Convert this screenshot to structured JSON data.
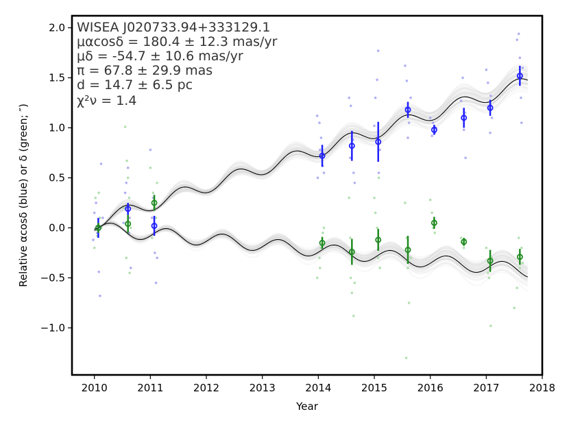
{
  "chart_data": {
    "type": "scatter",
    "xlabel": "Year",
    "ylabel": "Relative αcosδ (blue) or δ (green; ″)",
    "xlim": [
      2009.6,
      2018.0
    ],
    "ylim": [
      -1.47,
      2.12
    ],
    "xticks": [
      {
        "value": 2010,
        "label": "2010"
      },
      {
        "value": 2011,
        "label": "2011"
      },
      {
        "value": 2012,
        "label": "2012"
      },
      {
        "value": 2013,
        "label": "2013"
      },
      {
        "value": 2014,
        "label": "2014"
      },
      {
        "value": 2015,
        "label": "2015"
      },
      {
        "value": 2016,
        "label": "2016"
      },
      {
        "value": 2017,
        "label": "2017"
      },
      {
        "value": 2018,
        "label": "2018"
      }
    ],
    "yticks": [
      {
        "value": 2.0,
        "label": "2.0"
      },
      {
        "value": 1.5,
        "label": "1.5"
      },
      {
        "value": 1.0,
        "label": "1.0"
      },
      {
        "value": 0.5,
        "label": "0.5"
      },
      {
        "value": 0.0,
        "label": "0.0"
      },
      {
        "value": -0.5,
        "label": "−0.5"
      },
      {
        "value": -1.0,
        "label": "−1.0"
      }
    ],
    "annotation": {
      "object": "WISEA J020733.94+333129.1",
      "mu_ra": "μαcosδ = 180.4 ± 12.3 mas/yr",
      "mu_dec": "μδ = -54.7 ± 10.6 mas/yr",
      "parallax": "π = 67.8 ± 29.9 mas",
      "distance": "d = 14.7 ± 6.5 pc",
      "chi2": "χ²ν = 1.4"
    },
    "colors": {
      "ra": "#1f1fff",
      "dec": "#1f8a1f",
      "ra_scatter": "#9c9cf0",
      "dec_scatter": "#9fd89f",
      "model": "#000000",
      "model_samples": "#d8d8d8",
      "frame": "#000000"
    },
    "series": [
      {
        "name": "RA (blue)",
        "epochs": [
          {
            "x": 2010.07,
            "y": 0.0,
            "err": 0.1
          },
          {
            "x": 2010.6,
            "y": 0.19,
            "err": 0.06
          },
          {
            "x": 2011.07,
            "y": 0.02,
            "err": 0.1
          },
          {
            "x": 2014.07,
            "y": 0.72,
            "err": 0.11
          },
          {
            "x": 2014.6,
            "y": 0.82,
            "err": 0.15
          },
          {
            "x": 2015.07,
            "y": 0.86,
            "err": 0.2
          },
          {
            "x": 2015.6,
            "y": 1.18,
            "err": 0.08
          },
          {
            "x": 2016.07,
            "y": 0.98,
            "err": 0.05
          },
          {
            "x": 2016.6,
            "y": 1.1,
            "err": 0.1
          },
          {
            "x": 2017.07,
            "y": 1.2,
            "err": 0.08
          },
          {
            "x": 2017.6,
            "y": 1.52,
            "err": 0.1
          }
        ],
        "scatter": [
          [
            2010.0,
            0.15
          ],
          [
            2010.05,
            -0.05
          ],
          [
            2010.12,
            0.64
          ],
          [
            2010.1,
            -0.68
          ],
          [
            2010.08,
            -0.44
          ],
          [
            2010.03,
            0.25
          ],
          [
            2010.15,
            0.1
          ],
          [
            2009.98,
            -0.12
          ],
          [
            2010.55,
            0.35
          ],
          [
            2010.6,
            0.6
          ],
          [
            2010.62,
            -0.05
          ],
          [
            2010.58,
            0.2
          ],
          [
            2010.65,
            -0.4
          ],
          [
            2010.57,
            0.45
          ],
          [
            2010.63,
            0.1
          ],
          [
            2010.52,
            0.05
          ],
          [
            2011.0,
            0.78
          ],
          [
            2011.05,
            0.3
          ],
          [
            2011.1,
            -0.55
          ],
          [
            2011.08,
            -0.25
          ],
          [
            2011.03,
            0.1
          ],
          [
            2011.12,
            -0.3
          ],
          [
            2013.98,
            1.12
          ],
          [
            2014.02,
            1.05
          ],
          [
            2014.05,
            0.9
          ],
          [
            2014.08,
            0.62
          ],
          [
            2014.1,
            0.55
          ],
          [
            2014.03,
            0.78
          ],
          [
            2013.99,
            0.5
          ],
          [
            2014.55,
            1.3
          ],
          [
            2014.58,
            1.22
          ],
          [
            2014.6,
            0.95
          ],
          [
            2014.63,
            0.55
          ],
          [
            2014.57,
            0.7
          ],
          [
            2014.65,
            0.45
          ],
          [
            2014.62,
            0.88
          ],
          [
            2015.0,
            1.02
          ],
          [
            2015.02,
            1.3
          ],
          [
            2015.05,
            1.48
          ],
          [
            2015.07,
            1.77
          ],
          [
            2015.1,
            0.78
          ],
          [
            2015.08,
            0.55
          ],
          [
            2015.04,
            0.9
          ],
          [
            2015.55,
            1.62
          ],
          [
            2015.58,
            1.47
          ],
          [
            2015.62,
            1.05
          ],
          [
            2015.65,
            1.3
          ],
          [
            2015.6,
            0.9
          ],
          [
            2015.57,
            1.2
          ],
          [
            2016.0,
            1.1
          ],
          [
            2016.03,
            0.92
          ],
          [
            2016.05,
            1.05
          ],
          [
            2016.08,
            0.95
          ],
          [
            2016.1,
            1.0
          ],
          [
            2016.55,
            1.27
          ],
          [
            2016.58,
            1.5
          ],
          [
            2016.6,
            0.98
          ],
          [
            2016.63,
            0.7
          ],
          [
            2016.62,
            1.15
          ],
          [
            2017.0,
            1.58
          ],
          [
            2017.03,
            1.45
          ],
          [
            2017.05,
            1.2
          ],
          [
            2017.08,
            1.32
          ],
          [
            2017.1,
            1.1
          ],
          [
            2017.07,
            0.95
          ],
          [
            2017.55,
            1.88
          ],
          [
            2017.58,
            1.94
          ],
          [
            2017.6,
            1.7
          ],
          [
            2017.65,
            1.6
          ],
          [
            2017.62,
            1.3
          ],
          [
            2017.57,
            1.5
          ],
          [
            2017.63,
            1.05
          ]
        ]
      },
      {
        "name": "Dec (green)",
        "epochs": [
          {
            "x": 2010.07,
            "y": 0.0,
            "err": 0.05
          },
          {
            "x": 2010.6,
            "y": 0.04,
            "err": 0.09
          },
          {
            "x": 2011.07,
            "y": 0.25,
            "err": 0.08
          },
          {
            "x": 2014.07,
            "y": -0.15,
            "err": 0.06
          },
          {
            "x": 2014.6,
            "y": -0.24,
            "err": 0.13
          },
          {
            "x": 2015.07,
            "y": -0.12,
            "err": 0.11
          },
          {
            "x": 2015.6,
            "y": -0.22,
            "err": 0.14
          },
          {
            "x": 2016.07,
            "y": 0.05,
            "err": 0.06
          },
          {
            "x": 2016.6,
            "y": -0.14,
            "err": 0.04
          },
          {
            "x": 2017.07,
            "y": -0.33,
            "err": 0.11
          },
          {
            "x": 2017.6,
            "y": -0.29,
            "err": 0.08
          }
        ],
        "scatter": [
          [
            2010.02,
            0.3
          ],
          [
            2010.05,
            -0.08
          ],
          [
            2010.1,
            0.1
          ],
          [
            2010.12,
            0.0
          ],
          [
            2010.08,
            0.35
          ],
          [
            2010.0,
            -0.2
          ],
          [
            2010.55,
            1.01
          ],
          [
            2010.58,
            0.67
          ],
          [
            2010.6,
            0.5
          ],
          [
            2010.62,
            0.3
          ],
          [
            2010.65,
            0.0
          ],
          [
            2010.57,
            -0.3
          ],
          [
            2010.63,
            -0.45
          ],
          [
            2010.52,
            0.2
          ],
          [
            2011.0,
            0.6
          ],
          [
            2011.05,
            0.35
          ],
          [
            2011.08,
            0.2
          ],
          [
            2011.1,
            0.1
          ],
          [
            2011.03,
            -0.1
          ],
          [
            2011.12,
            0.45
          ],
          [
            2013.98,
            -0.5
          ],
          [
            2014.02,
            -0.3
          ],
          [
            2014.05,
            -0.2
          ],
          [
            2014.08,
            -0.05
          ],
          [
            2014.1,
            0.0
          ],
          [
            2014.03,
            -0.4
          ],
          [
            2014.55,
            0.3
          ],
          [
            2014.58,
            -0.5
          ],
          [
            2014.6,
            -0.65
          ],
          [
            2014.63,
            -0.88
          ],
          [
            2014.57,
            -0.1
          ],
          [
            2014.65,
            -0.55
          ],
          [
            2015.0,
            0.3
          ],
          [
            2015.02,
            0.15
          ],
          [
            2015.05,
            0.0
          ],
          [
            2015.07,
            -0.3
          ],
          [
            2015.1,
            -0.4
          ],
          [
            2015.08,
            0.5
          ],
          [
            2015.55,
            0.25
          ],
          [
            2015.58,
            -0.1
          ],
          [
            2015.6,
            -0.4
          ],
          [
            2015.62,
            -0.75
          ],
          [
            2015.57,
            -1.3
          ],
          [
            2015.65,
            -0.3
          ],
          [
            2016.0,
            0.28
          ],
          [
            2016.03,
            0.15
          ],
          [
            2016.05,
            0.0
          ],
          [
            2016.08,
            -0.05
          ],
          [
            2016.55,
            -0.1
          ],
          [
            2016.58,
            -0.15
          ],
          [
            2016.6,
            -0.2
          ],
          [
            2016.63,
            -0.12
          ],
          [
            2017.0,
            -0.2
          ],
          [
            2017.03,
            -0.45
          ],
          [
            2017.05,
            -0.5
          ],
          [
            2017.08,
            -0.98
          ],
          [
            2017.1,
            -0.3
          ],
          [
            2017.5,
            -0.8
          ],
          [
            2017.55,
            -0.6
          ],
          [
            2017.6,
            -0.4
          ],
          [
            2017.63,
            -0.2
          ],
          [
            2017.58,
            -0.1
          ],
          [
            2017.65,
            -0.35
          ]
        ]
      }
    ],
    "model": {
      "ra": {
        "mu": 0.1804,
        "plx": 0.0678,
        "a0": 0.155,
        "phase": 0.0
      },
      "dec": {
        "mu": -0.0547,
        "plx": 0.0678,
        "a0": 0.155,
        "phase": 0.25
      }
    }
  }
}
